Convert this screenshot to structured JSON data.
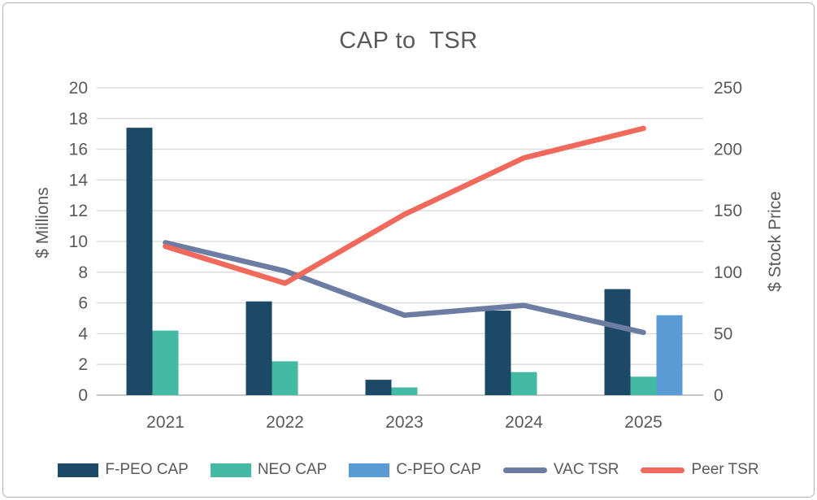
{
  "frame": {
    "background_color": "#ffffff",
    "border_color": "#b3b3b3"
  },
  "chart_data": {
    "type": "combo-bar-line",
    "title": "CAP to  TSR",
    "categories": [
      "2021",
      "2022",
      "2023",
      "2024",
      "2025"
    ],
    "left_axis": {
      "label": "$ Millions",
      "min": 0,
      "max": 20,
      "step": 2,
      "ticks": [
        0,
        2,
        4,
        6,
        8,
        10,
        12,
        14,
        16,
        18,
        20
      ]
    },
    "right_axis": {
      "label": "$ Stock Price",
      "min": 0,
      "max": 250,
      "step": 50,
      "ticks": [
        0,
        50,
        100,
        150,
        200,
        250
      ]
    },
    "bar_series": [
      {
        "name": "F-PEO CAP",
        "color": "#1c4966",
        "axis": "left",
        "values": [
          17.4,
          6.1,
          1.0,
          5.5,
          6.9
        ]
      },
      {
        "name": "NEO CAP",
        "color": "#44b9a3",
        "axis": "left",
        "values": [
          4.2,
          2.2,
          0.5,
          1.5,
          1.2
        ]
      },
      {
        "name": "C-PEO CAP",
        "color": "#5b9bd5",
        "axis": "left",
        "values": [
          0,
          0,
          0,
          0,
          5.2
        ]
      }
    ],
    "line_series": [
      {
        "name": "VAC TSR",
        "color": "#6d7ca3",
        "axis": "right",
        "values": [
          124,
          101,
          65,
          73,
          51
        ]
      },
      {
        "name": "Peer TSR",
        "color": "#f0695c",
        "axis": "right",
        "values": [
          121,
          91,
          147,
          193,
          217
        ]
      }
    ],
    "grid": true,
    "gridline_color": "#d9d9d9",
    "baseline_color": "#c6c6c6",
    "text_color": "#595959",
    "legend_position": "bottom"
  }
}
